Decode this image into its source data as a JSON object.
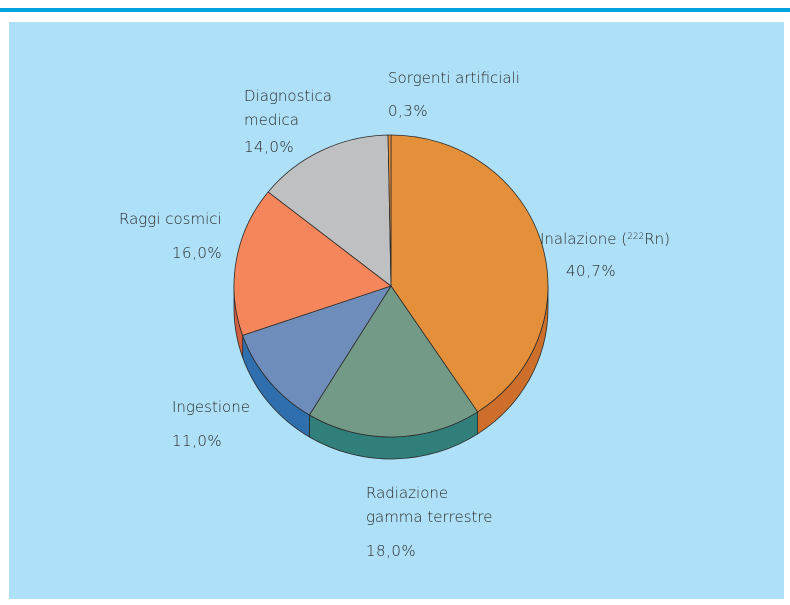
{
  "colors": {
    "accent_rule": "#00a2e0",
    "panel_background": "#aee0f8"
  },
  "chart_data": {
    "type": "pie",
    "title": "",
    "start_angle_deg": 0,
    "direction": "clockwise",
    "slices": [
      {
        "key": "inalazione",
        "label_prefix": "Inalazione (",
        "label_sup": "222",
        "label_suffix": "Rn)",
        "value": 40.7,
        "value_label": "40,7%",
        "color": "#e4903a",
        "side_color": "#cd6f2a"
      },
      {
        "key": "radiazione",
        "label_lines": [
          "Radiazione",
          "gamma terrestre"
        ],
        "value": 18.0,
        "value_label": "18,0%",
        "color": "#739a87",
        "side_color": "#317f7b"
      },
      {
        "key": "ingestione",
        "label": "Ingestione",
        "value": 11.0,
        "value_label": "11,0%",
        "color": "#6e8dbb",
        "side_color": "#2f6fae"
      },
      {
        "key": "raggi",
        "label": "Raggi cosmici",
        "value": 16.0,
        "value_label": "16,0%",
        "color": "#f5855a",
        "side_color": "#d25f3f"
      },
      {
        "key": "diagnostica",
        "label_lines": [
          "Diagnostica",
          "medica"
        ],
        "value": 14.0,
        "value_label": "14,0%",
        "color": "#bfc0c2",
        "side_color": "#9a9b9d"
      },
      {
        "key": "sorgenti",
        "label": "Sorgenti artificiali",
        "value": 0.3,
        "value_label": "0,3%",
        "color": "#e4903a",
        "side_color": "#cd6f2a"
      }
    ]
  }
}
